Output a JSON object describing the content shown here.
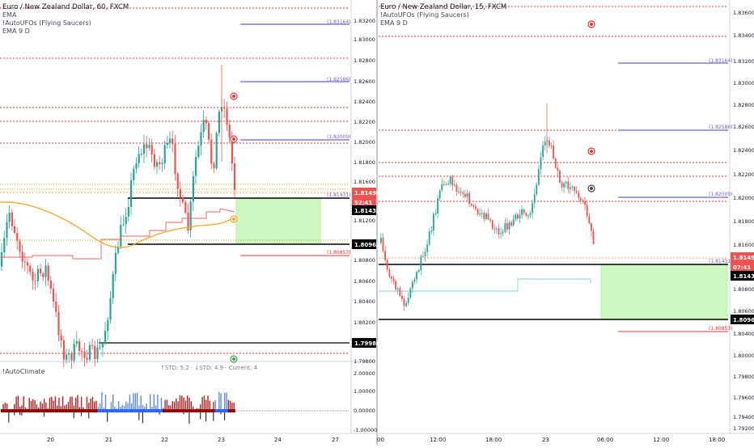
{
  "left_chart": {
    "title": "Euro / New Zealand Dollar, 60, FXCM",
    "indicators": [
      "EMA",
      "!AutoUFOs (Flying Saucers)",
      "EMA 9 D"
    ],
    "price_axis": [
      "1.83200",
      "1.83000",
      "1.82800",
      "1.82600",
      "1.82400",
      "1.82200",
      "1.82000",
      "1.81800",
      "1.81600",
      "1.81200",
      "1.80800",
      "1.80600",
      "1.80400",
      "1.80200",
      "1.79800"
    ],
    "time_axis": [
      "20",
      "21",
      "22",
      "23",
      "24",
      "27"
    ],
    "level_labels": [
      "(1.83164)",
      "(1.82586)",
      "(1.82009)",
      "(1.81431)",
      "(1.80853)"
    ],
    "price_tags": {
      "last": "1.81498",
      "countdown": "52:41",
      "upper_box": "1.81432",
      "lower_box": "1.80962",
      "low_box": "1.79986"
    },
    "sub_label": "!AutoClimate",
    "stats": "↑STD: 5.2 · ↓STD: 4.9 · Current: 4",
    "sub_axis": [
      "2.00000",
      "1.00000",
      "0.00000",
      "-1.00000"
    ]
  },
  "right_chart": {
    "title": "Euro / New Zealand Dollar, 15, FXCM",
    "indicators": [
      "!AutoUFOs (Flying Saucers)",
      "EMA 9 D"
    ],
    "price_axis": [
      "1.83600",
      "1.83400",
      "1.83200",
      "1.83000",
      "1.82800",
      "1.82600",
      "1.82400",
      "1.82200",
      "1.82000",
      "1.81800",
      "1.81600",
      "1.80800",
      "1.80600",
      "1.80400",
      "1.80000",
      "1.79800",
      "1.79600",
      "1.79400",
      "1.79200"
    ],
    "time_axis": [
      "00",
      "12:00",
      "18:00",
      "23",
      "06:00",
      "12:00",
      "18:00"
    ],
    "level_labels": [
      "(1.83164)",
      "(1.82586)",
      "(1.82009)",
      "(1.81431)",
      "(1.80853)"
    ],
    "price_tags": {
      "last": "1.81498",
      "countdown": "07:41",
      "upper_box": "1.81432",
      "lower_box": "1.80962"
    }
  },
  "colors": {
    "red_level": "#e53935",
    "blue_level": "#3f3fbf",
    "bull": "#26a69a",
    "bear": "#ef5350",
    "ema": "#f5a623",
    "zone": "#ccf5c0",
    "ufo_red": "#e53935",
    "ufo_green": "#43a047"
  }
}
